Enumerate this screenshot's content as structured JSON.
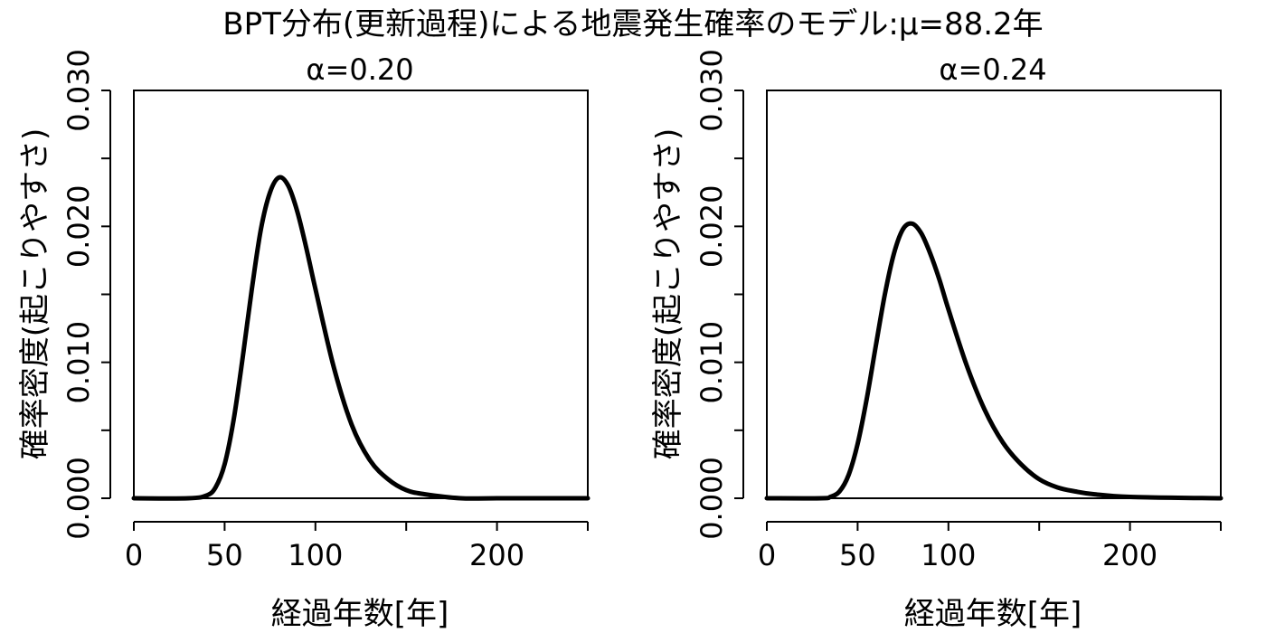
{
  "figure_title": "BPT分布(更新過程)による地震発生確率のモデル:μ=88.2年",
  "chart_data": [
    {
      "type": "line",
      "title": "α=0.20",
      "xlabel": "経過年数[年]",
      "ylabel": "確率密度(起こりやすさ)",
      "xlim": [
        0,
        250
      ],
      "ylim": [
        0,
        0.03
      ],
      "x_ticks": [
        0,
        50,
        100,
        150,
        200,
        250
      ],
      "x_tick_labels": [
        "0",
        "50",
        "100",
        "",
        "200",
        ""
      ],
      "y_ticks": [
        0,
        0.005,
        0.01,
        0.015,
        0.02,
        0.025,
        0.03
      ],
      "y_tick_labels": [
        "0.000",
        "",
        "0.010",
        "",
        "0.020",
        "",
        "0.030"
      ],
      "mu": 88.2,
      "alpha": 0.2,
      "series": [
        {
          "x": [
            0,
            30,
            40,
            45,
            50,
            55,
            60,
            65,
            70,
            75,
            80,
            85,
            90,
            95,
            100,
            110,
            120,
            130,
            140,
            150,
            160,
            180,
            200,
            250
          ],
          "y": [
            0,
            0.0,
            0.0002,
            0.0008,
            0.0025,
            0.0058,
            0.0104,
            0.0154,
            0.0198,
            0.0225,
            0.0236,
            0.023,
            0.0211,
            0.0184,
            0.0154,
            0.0097,
            0.0054,
            0.0028,
            0.0014,
            0.0006,
            0.0003,
            0.0,
            0.0,
            0.0
          ]
        }
      ],
      "grid": false,
      "line_color": "#000000"
    },
    {
      "type": "line",
      "title": "α=0.24",
      "xlabel": "経過年数[年]",
      "ylabel": "確率密度(起こりやすさ)",
      "xlim": [
        0,
        250
      ],
      "ylim": [
        0,
        0.03
      ],
      "x_ticks": [
        0,
        50,
        100,
        150,
        200,
        250
      ],
      "x_tick_labels": [
        "0",
        "50",
        "100",
        "",
        "200",
        ""
      ],
      "y_ticks": [
        0,
        0.005,
        0.01,
        0.015,
        0.02,
        0.025,
        0.03
      ],
      "y_tick_labels": [
        "0.000",
        "",
        "0.010",
        "",
        "0.020",
        "",
        "0.030"
      ],
      "mu": 88.2,
      "alpha": 0.24,
      "series": [
        {
          "x": [
            0,
            30,
            35,
            40,
            45,
            50,
            55,
            60,
            65,
            70,
            75,
            80,
            85,
            90,
            95,
            100,
            110,
            120,
            130,
            140,
            150,
            160,
            170,
            180,
            200,
            250
          ],
          "y": [
            0,
            0.0,
            0.0001,
            0.0005,
            0.0017,
            0.004,
            0.0073,
            0.0112,
            0.015,
            0.018,
            0.0198,
            0.0202,
            0.0195,
            0.018,
            0.0161,
            0.0139,
            0.0098,
            0.0065,
            0.0041,
            0.0025,
            0.0014,
            0.0008,
            0.0005,
            0.0003,
            0.0001,
            0.0
          ]
        }
      ],
      "grid": false,
      "line_color": "#000000"
    }
  ]
}
